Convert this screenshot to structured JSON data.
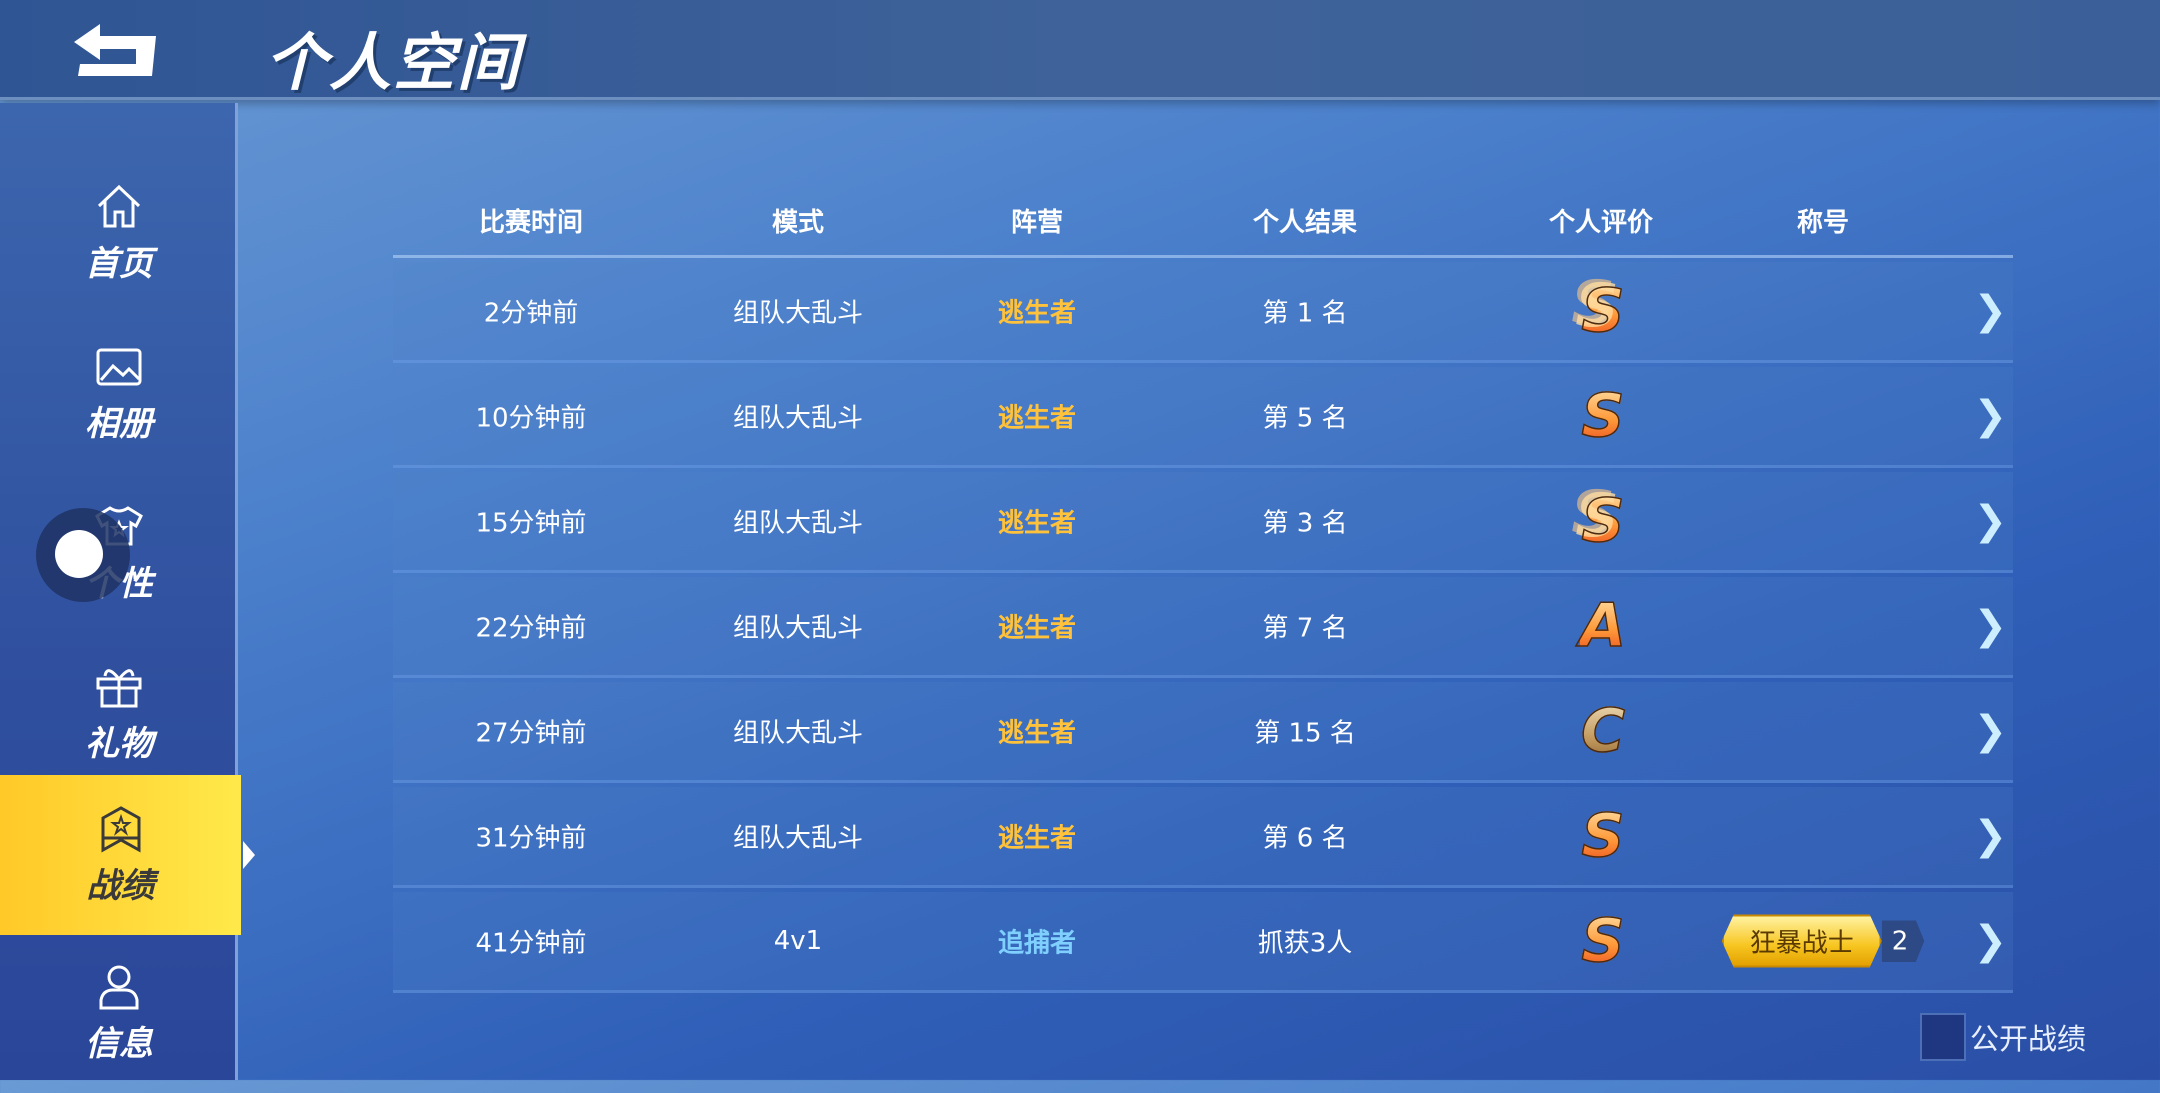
{
  "header": {
    "title": "个人空间",
    "back_icon": "back-arrow-icon"
  },
  "sidebar": {
    "items": [
      {
        "label": "首页",
        "icon": "home-icon"
      },
      {
        "label": "相册",
        "icon": "image-icon"
      },
      {
        "label": "个性",
        "icon": "tshirt-icon"
      },
      {
        "label": "礼物",
        "icon": "gift-icon"
      },
      {
        "label": "战绩",
        "icon": "badge-star-icon",
        "active": true
      },
      {
        "label": "信息",
        "icon": "user-icon"
      }
    ],
    "active_color": "#ffd633"
  },
  "table": {
    "headers": [
      "比赛时间",
      "模式",
      "阵营",
      "个人结果",
      "个人评价",
      "称号"
    ],
    "rows": [
      {
        "time": "2分钟前",
        "mode": "组队大乱斗",
        "camp": "逃生者",
        "result": "第 1 名",
        "grade": "S",
        "grade_style": "multi",
        "title": "",
        "title_level": ""
      },
      {
        "time": "10分钟前",
        "mode": "组队大乱斗",
        "camp": "逃生者",
        "result": "第 5 名",
        "grade": "S",
        "grade_style": "single",
        "title": "",
        "title_level": ""
      },
      {
        "time": "15分钟前",
        "mode": "组队大乱斗",
        "camp": "逃生者",
        "result": "第 3 名",
        "grade": "S",
        "grade_style": "multi",
        "title": "",
        "title_level": ""
      },
      {
        "time": "22分钟前",
        "mode": "组队大乱斗",
        "camp": "逃生者",
        "result": "第 7 名",
        "grade": "A",
        "grade_style": "single",
        "title": "",
        "title_level": ""
      },
      {
        "time": "27分钟前",
        "mode": "组队大乱斗",
        "camp": "逃生者",
        "result": "第 15 名",
        "grade": "C",
        "grade_style": "single",
        "title": "",
        "title_level": ""
      },
      {
        "time": "31分钟前",
        "mode": "组队大乱斗",
        "camp": "逃生者",
        "result": "第 6 名",
        "grade": "S",
        "grade_style": "single",
        "title": "",
        "title_level": ""
      },
      {
        "time": "41分钟前",
        "mode": "4v1",
        "camp": "追捕者",
        "result": "抓获3人",
        "grade": "S",
        "grade_style": "single",
        "title": "狂暴战士",
        "title_level": "2"
      }
    ],
    "escape_color": "#ffc23a",
    "hunter_color": "#7fd0ff"
  },
  "publish": {
    "label": "公开战绩",
    "checked": false
  }
}
